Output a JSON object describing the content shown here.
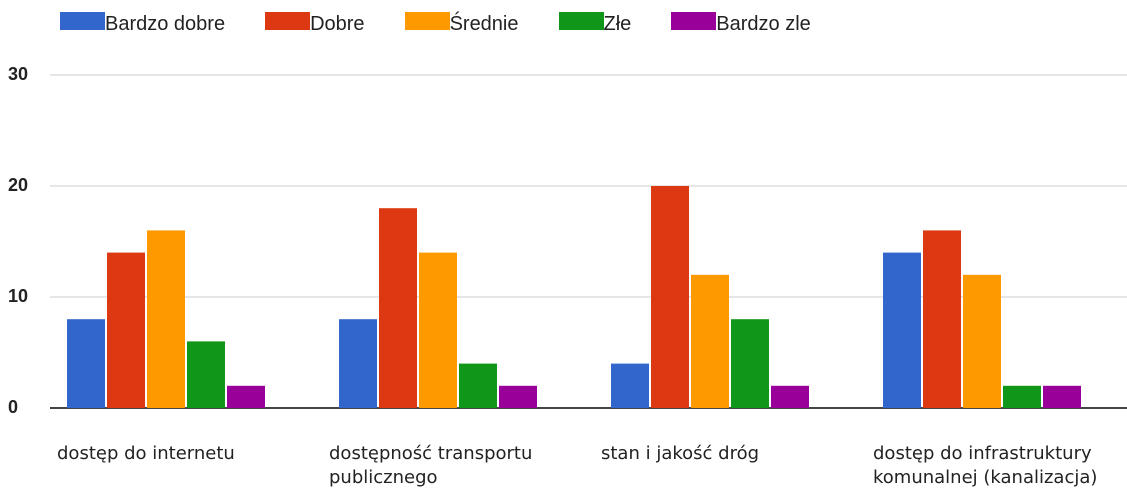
{
  "chart_data": {
    "type": "bar",
    "categories": [
      "dostęp do internetu",
      "dostępność transportu\npublicznego",
      "stan i jakość dróg",
      "dostęp do infrastruktury\nkomunalnej (kanalizacja)"
    ],
    "series": [
      {
        "name": "Bardzo dobre",
        "color": "#3366cc",
        "values": [
          8,
          8,
          4,
          14
        ]
      },
      {
        "name": "Dobre",
        "color": "#dc3912",
        "values": [
          14,
          18,
          20,
          16
        ]
      },
      {
        "name": "Średnie",
        "color": "#ff9900",
        "values": [
          16,
          14,
          12,
          12
        ]
      },
      {
        "name": "Złe",
        "color": "#109618",
        "values": [
          6,
          4,
          8,
          2
        ]
      },
      {
        "name": "Bardzo zle",
        "color": "#990099",
        "values": [
          2,
          2,
          2,
          2
        ]
      }
    ],
    "ylim": [
      0,
      30
    ],
    "yticks": [
      0,
      10,
      20,
      30
    ],
    "grid": true,
    "legend": "top"
  }
}
